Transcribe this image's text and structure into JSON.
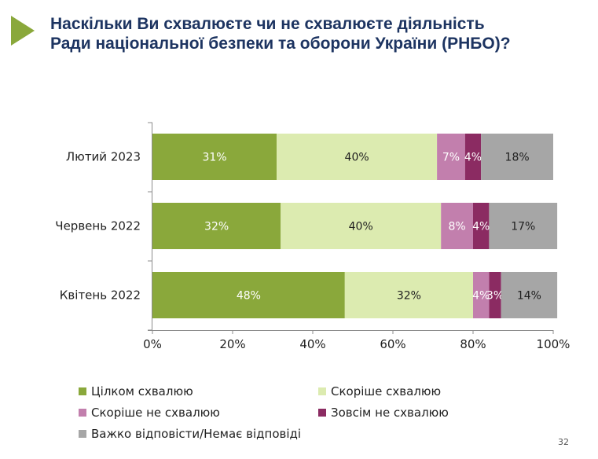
{
  "slide": {
    "title_line1": "Наскільки Ви схвалюєте чи не схвалюєте діяльність",
    "title_line2": "Ради національної безпеки та оборони України (РНБО)?",
    "page_number": "32"
  },
  "colors": {
    "accent": "#8aa83b",
    "title": "#1d3461"
  },
  "chart_data": {
    "type": "bar",
    "orientation": "horizontal",
    "stacked": true,
    "categories": [
      "Лютий 2023",
      "Червень 2022",
      "Квітень 2022"
    ],
    "series": [
      {
        "name": "Цілком схвалюю",
        "color": "#8aa83b",
        "label_color": "#ffffff",
        "values": [
          31,
          32,
          48
        ]
      },
      {
        "name": "Скоріше схвалюю",
        "color": "#dcebb0",
        "label_color": "#1f1f1f",
        "values": [
          40,
          40,
          32
        ]
      },
      {
        "name": "Скоріше не схвалюю",
        "color": "#c27fad",
        "label_color": "#ffffff",
        "values": [
          7,
          8,
          4
        ]
      },
      {
        "name": "Зовсім не схвалюю",
        "color": "#8b2b62",
        "label_color": "#ffffff",
        "values": [
          4,
          4,
          3
        ]
      },
      {
        "name": "Важко відповісти/Немає відповіді",
        "color": "#a6a6a6",
        "label_color": "#1f1f1f",
        "values": [
          18,
          17,
          14
        ]
      }
    ],
    "xlim": [
      0,
      100
    ],
    "xticks": [
      0,
      20,
      40,
      60,
      80,
      100
    ],
    "xtick_labels": [
      "0%",
      "20%",
      "40%",
      "60%",
      "80%",
      "100%"
    ],
    "value_suffix": "%",
    "grid": false,
    "legend_position": "bottom"
  }
}
